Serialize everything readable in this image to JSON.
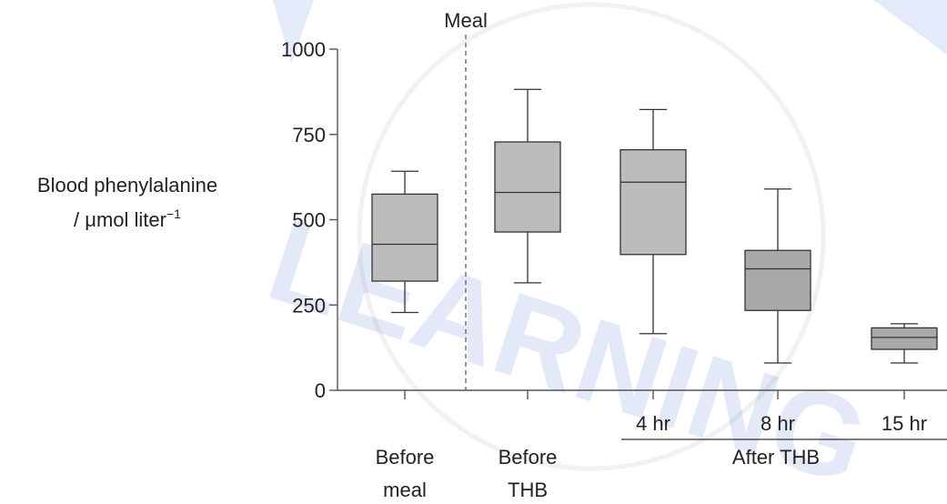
{
  "chart_data": {
    "type": "box",
    "ylabel_line1": "Blood phenylalanine",
    "ylabel_line2_prefix": "/ ",
    "ylabel_line2_unit": "μmol liter",
    "ylabel_line2_exponent": "−1",
    "ylim": [
      0,
      1000
    ],
    "yticks": [
      0,
      250,
      500,
      750,
      1000
    ],
    "annotation": "Meal",
    "group_label": "After THB",
    "categories": [
      {
        "label_lines": [
          "Before",
          "meal"
        ],
        "min": 228,
        "q1": 320,
        "median": 428,
        "q3": 575,
        "max": 642,
        "fill": "#bcbcbc"
      },
      {
        "label_lines": [
          "Before",
          "THB"
        ],
        "min": 315,
        "q1": 464,
        "median": 580,
        "q3": 728,
        "max": 882,
        "fill": "#bcbcbc"
      },
      {
        "label_lines": [
          "4 hr"
        ],
        "min": 166,
        "q1": 398,
        "median": 610,
        "q3": 705,
        "max": 823,
        "fill": "#bcbcbc"
      },
      {
        "label_lines": [
          "8 hr"
        ],
        "min": 80,
        "q1": 234,
        "median": 356,
        "q3": 410,
        "max": 590,
        "fill": "#a9a9a9"
      },
      {
        "label_lines": [
          "15 hr"
        ],
        "min": 80,
        "q1": 120,
        "median": 155,
        "q3": 183,
        "max": 195,
        "fill": "#a9a9a9"
      }
    ]
  },
  "watermark": {
    "text": "LEARNING"
  }
}
